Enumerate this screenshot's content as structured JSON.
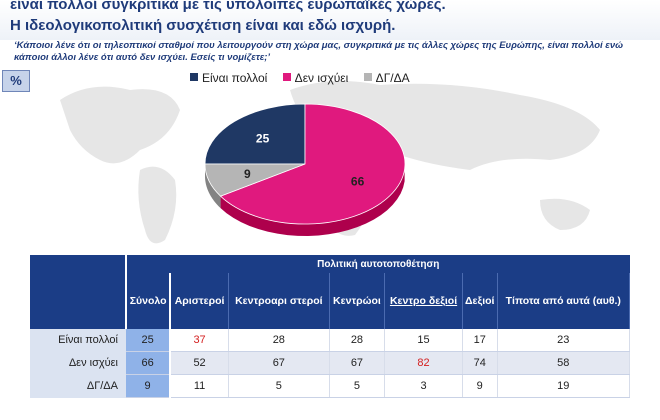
{
  "header": {
    "title_line1": "είναι πολλοί συγκριτικά με τις υπόλοιπες  ευρωπαϊκές χώρες.",
    "title_line2": "Η ιδεολογικοπολιτική συσχέτιση είναι και εδώ ισχυρή."
  },
  "question": "‘Κάποιοι λένε ότι οι τηλεοπτικοί σταθμοί που λειτουργούν στη χώρα μας, συγκριτικά με τις άλλες χώρες της Ευρώπης, είναι πολλοί ενώ κάποιοι άλλοι λένε ότι αυτό δεν ισχύει. Εσείς τι νομίζετε;’",
  "badge": "%",
  "colors": {
    "navy": "#1f3864",
    "magenta": "#e0197e",
    "gray": "#b5b5b5",
    "header_blue": "#1b3d86",
    "highlight_red": "#d42020"
  },
  "chart_data": {
    "type": "pie",
    "legend_position": "top",
    "slices": [
      {
        "label": "Είναι πολλοί",
        "value": 25,
        "color": "#1f3864"
      },
      {
        "label": "Δεν ισχύει",
        "value": 66,
        "color": "#e0197e"
      },
      {
        "label": "ΔΓ/ΔΑ",
        "value": 9,
        "color": "#b5b5b5"
      }
    ]
  },
  "table": {
    "group_header": "Πολιτική αυτοτοποθέτηση",
    "columns": [
      "Σύνολο",
      "Αριστεροί",
      "Κεντροαρι στεροί",
      "Κεντρώοι",
      "Κεντρο δεξιοί",
      "Δεξιοί",
      "Τίποτα από αυτά (αυθ.)"
    ],
    "rows": [
      {
        "label": "Είναι πολλοί",
        "values": [
          "25",
          "37",
          "28",
          "28",
          "15",
          "17",
          "23"
        ]
      },
      {
        "label": "Δεν ισχύει",
        "values": [
          "66",
          "52",
          "67",
          "67",
          "82",
          "74",
          "58"
        ]
      },
      {
        "label": "ΔΓ/ΔΑ",
        "values": [
          "9",
          "11",
          "5",
          "5",
          "3",
          "9",
          "19"
        ]
      }
    ]
  }
}
